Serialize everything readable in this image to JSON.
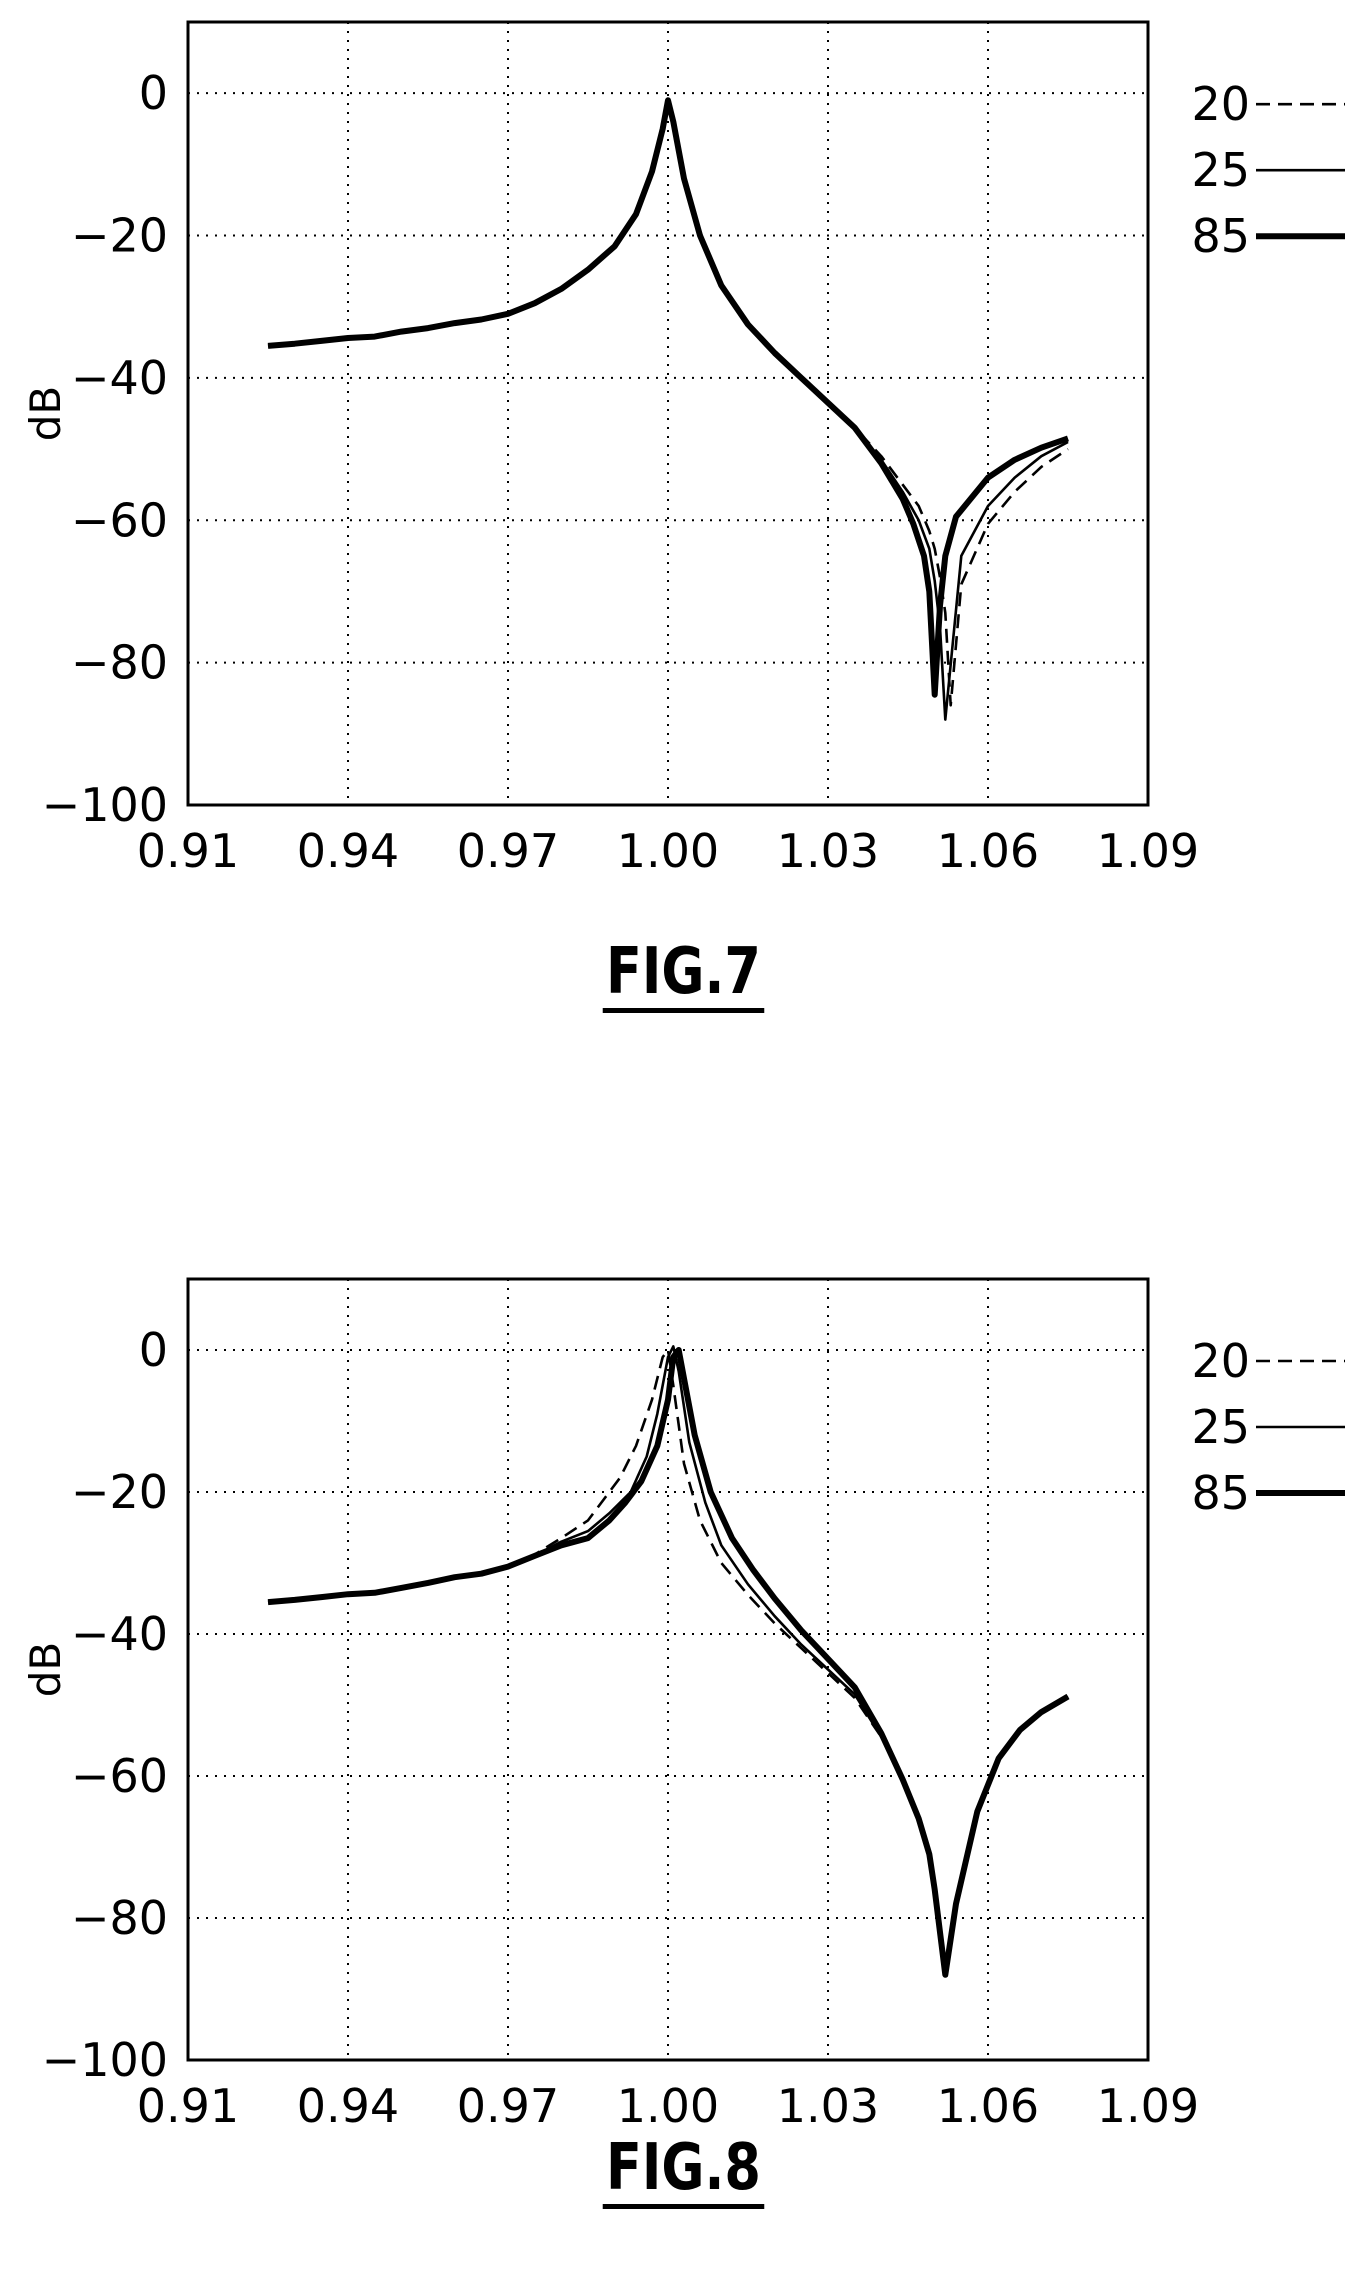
{
  "chart_data": [
    {
      "type": "line",
      "title": "FIG.7",
      "xlabel": "",
      "ylabel": "dB",
      "xlim": [
        0.91,
        1.09
      ],
      "ylim": [
        -100,
        10
      ],
      "xticks": [
        "0.91",
        "0.94",
        "0.97",
        "1.00",
        "1.03",
        "1.06",
        "1.09"
      ],
      "yticks": [
        "0",
        "−20",
        "−40",
        "−60",
        "−80",
        "−100"
      ],
      "grid": true,
      "legend_position": "right",
      "series": [
        {
          "name": "20",
          "style": "dashed",
          "x": [
            0.925,
            0.93,
            0.935,
            0.94,
            0.945,
            0.95,
            0.955,
            0.96,
            0.965,
            0.97,
            0.975,
            0.98,
            0.985,
            0.99,
            0.994,
            0.997,
            0.999,
            1.0,
            1.001,
            1.003,
            1.006,
            1.01,
            1.015,
            1.02,
            1.025,
            1.03,
            1.035,
            1.04,
            1.044,
            1.047,
            1.049,
            1.05,
            1.051,
            1.052,
            1.053,
            1.055,
            1.06,
            1.065,
            1.07,
            1.075
          ],
          "y": [
            -35.5,
            -35.2,
            -34.8,
            -34.4,
            -34.2,
            -33.5,
            -33.0,
            -32.3,
            -31.8,
            -31.0,
            -29.5,
            -27.5,
            -24.8,
            -21.5,
            -17.0,
            -11.0,
            -5.0,
            -1.0,
            -4.0,
            -12.0,
            -20.0,
            -27.0,
            -32.5,
            -36.5,
            -40.0,
            -43.5,
            -47.0,
            -51.0,
            -55.0,
            -58.0,
            -61.5,
            -64.0,
            -68.0,
            -73.0,
            -86.0,
            -69.0,
            -60.5,
            -56.0,
            -52.5,
            -50.0
          ]
        },
        {
          "name": "25",
          "style": "solid",
          "x": [
            0.925,
            0.93,
            0.935,
            0.94,
            0.945,
            0.95,
            0.955,
            0.96,
            0.965,
            0.97,
            0.975,
            0.98,
            0.985,
            0.99,
            0.994,
            0.997,
            0.999,
            1.0,
            1.001,
            1.003,
            1.006,
            1.01,
            1.015,
            1.02,
            1.025,
            1.03,
            1.035,
            1.04,
            1.044,
            1.047,
            1.049,
            1.05,
            1.051,
            1.052,
            1.055,
            1.06,
            1.065,
            1.07,
            1.075
          ],
          "y": [
            -35.5,
            -35.2,
            -34.8,
            -34.4,
            -34.2,
            -33.5,
            -33.0,
            -32.3,
            -31.8,
            -31.0,
            -29.5,
            -27.5,
            -24.8,
            -21.5,
            -17.0,
            -11.0,
            -5.0,
            -1.0,
            -4.0,
            -12.0,
            -20.0,
            -27.0,
            -32.5,
            -36.5,
            -40.0,
            -43.5,
            -47.0,
            -51.5,
            -56.0,
            -60.0,
            -64.0,
            -68.5,
            -75.0,
            -88.0,
            -65.0,
            -58.0,
            -54.0,
            -51.0,
            -49.0
          ]
        },
        {
          "name": "85",
          "style": "thick",
          "x": [
            0.925,
            0.93,
            0.935,
            0.94,
            0.945,
            0.95,
            0.955,
            0.96,
            0.965,
            0.97,
            0.975,
            0.98,
            0.985,
            0.99,
            0.994,
            0.997,
            0.999,
            1.0,
            1.001,
            1.003,
            1.006,
            1.01,
            1.015,
            1.02,
            1.025,
            1.03,
            1.035,
            1.04,
            1.044,
            1.046,
            1.048,
            1.049,
            1.05,
            1.051,
            1.052,
            1.054,
            1.06,
            1.065,
            1.07,
            1.075
          ],
          "y": [
            -35.5,
            -35.2,
            -34.8,
            -34.4,
            -34.2,
            -33.5,
            -33.0,
            -32.3,
            -31.8,
            -31.0,
            -29.5,
            -27.5,
            -24.8,
            -21.5,
            -17.0,
            -11.0,
            -5.0,
            -1.0,
            -4.0,
            -12.0,
            -20.0,
            -27.0,
            -32.5,
            -36.5,
            -40.0,
            -43.5,
            -47.0,
            -52.0,
            -57.0,
            -60.5,
            -65.0,
            -70.0,
            -84.5,
            -72.0,
            -65.0,
            -59.5,
            -54.0,
            -51.5,
            -49.8,
            -48.5
          ]
        }
      ]
    },
    {
      "type": "line",
      "title": "FIG.8",
      "xlabel": "",
      "ylabel": "dB",
      "xlim": [
        0.91,
        1.09
      ],
      "ylim": [
        -100,
        10
      ],
      "xticks": [
        "0.91",
        "0.94",
        "0.97",
        "1.00",
        "1.03",
        "1.06",
        "1.09"
      ],
      "yticks": [
        "0",
        "−20",
        "−40",
        "−60",
        "−80",
        "−100"
      ],
      "grid": true,
      "legend_position": "right",
      "series": [
        {
          "name": "20",
          "style": "dashed",
          "x": [
            0.925,
            0.93,
            0.935,
            0.94,
            0.945,
            0.95,
            0.955,
            0.96,
            0.965,
            0.97,
            0.975,
            0.98,
            0.985,
            0.988,
            0.991,
            0.994,
            0.997,
            0.999,
            1.0,
            1.001,
            1.003,
            1.006,
            1.01,
            1.015,
            1.02,
            1.025,
            1.03,
            1.035,
            1.04,
            1.044,
            1.047,
            1.049,
            1.05,
            1.051,
            1.052,
            1.054,
            1.058,
            1.062,
            1.066,
            1.07,
            1.075
          ],
          "y": [
            -35.5,
            -35.2,
            -34.8,
            -34.4,
            -34.2,
            -33.5,
            -32.8,
            -32.0,
            -31.5,
            -30.5,
            -28.8,
            -26.5,
            -24.0,
            -21.0,
            -18.0,
            -13.5,
            -7.0,
            -1.0,
            0.0,
            -5.0,
            -16.0,
            -24.0,
            -30.0,
            -34.5,
            -38.5,
            -42.0,
            -45.5,
            -49.0,
            -54.5,
            -60.5,
            -66.0,
            -71.0,
            -76.0,
            -82.0,
            -88.0,
            -78.0,
            -65.0,
            -57.5,
            -53.5,
            -51.0,
            -48.8
          ]
        },
        {
          "name": "25",
          "style": "solid",
          "x": [
            0.925,
            0.93,
            0.935,
            0.94,
            0.945,
            0.95,
            0.955,
            0.96,
            0.965,
            0.97,
            0.975,
            0.98,
            0.985,
            0.989,
            0.993,
            0.996,
            0.998,
            1.0,
            1.001,
            1.002,
            1.004,
            1.007,
            1.01,
            1.015,
            1.02,
            1.025,
            1.03,
            1.035,
            1.04,
            1.044,
            1.047,
            1.049,
            1.05,
            1.051,
            1.052,
            1.054,
            1.058,
            1.062,
            1.066,
            1.07,
            1.075
          ],
          "y": [
            -35.5,
            -35.2,
            -34.8,
            -34.4,
            -34.2,
            -33.5,
            -32.8,
            -32.0,
            -31.5,
            -30.5,
            -29.0,
            -27.0,
            -25.5,
            -23.0,
            -20.0,
            -15.0,
            -9.0,
            -1.0,
            0.5,
            -3.0,
            -13.0,
            -21.5,
            -27.5,
            -33.0,
            -37.5,
            -41.5,
            -45.0,
            -48.5,
            -54.5,
            -60.5,
            -66.0,
            -71.0,
            -76.0,
            -82.0,
            -88.0,
            -78.0,
            -65.0,
            -57.5,
            -53.5,
            -51.0,
            -48.8
          ]
        },
        {
          "name": "85",
          "style": "thick",
          "x": [
            0.925,
            0.93,
            0.935,
            0.94,
            0.945,
            0.95,
            0.955,
            0.96,
            0.965,
            0.97,
            0.975,
            0.98,
            0.985,
            0.989,
            0.992,
            0.995,
            0.998,
            1.0,
            1.001,
            1.002,
            1.003,
            1.005,
            1.008,
            1.012,
            1.016,
            1.02,
            1.025,
            1.03,
            1.035,
            1.04,
            1.044,
            1.047,
            1.049,
            1.05,
            1.051,
            1.052,
            1.054,
            1.058,
            1.062,
            1.066,
            1.07,
            1.075
          ],
          "y": [
            -35.5,
            -35.2,
            -34.8,
            -34.4,
            -34.2,
            -33.5,
            -32.8,
            -32.0,
            -31.5,
            -30.5,
            -29.0,
            -27.5,
            -26.5,
            -24.0,
            -21.5,
            -18.5,
            -13.5,
            -7.0,
            -1.0,
            0.0,
            -4.0,
            -12.0,
            -20.0,
            -26.5,
            -31.0,
            -35.0,
            -39.5,
            -43.5,
            -47.5,
            -54.0,
            -60.5,
            -66.0,
            -71.0,
            -76.0,
            -82.0,
            -88.0,
            -78.0,
            -65.0,
            -57.5,
            -53.5,
            -51.0,
            -48.8
          ]
        }
      ]
    }
  ]
}
